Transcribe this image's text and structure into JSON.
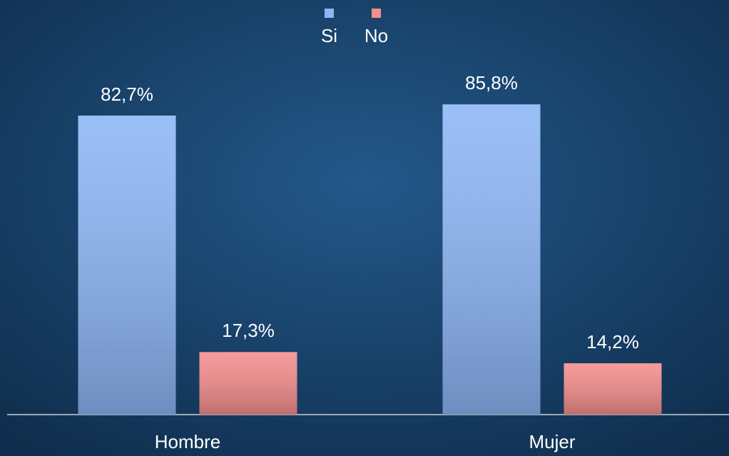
{
  "chart_data": {
    "type": "bar",
    "categories": [
      "Hombre",
      "Mujer"
    ],
    "series": [
      {
        "name": "Si",
        "color": "#8db6f6",
        "values": [
          82.7,
          85.8
        ],
        "value_labels": [
          "82,7%",
          "85,8%"
        ]
      },
      {
        "name": "No",
        "color": "#f58d8d",
        "values": [
          17.3,
          14.2
        ],
        "value_labels": [
          "17,3%",
          "14,2%"
        ]
      }
    ]
  }
}
